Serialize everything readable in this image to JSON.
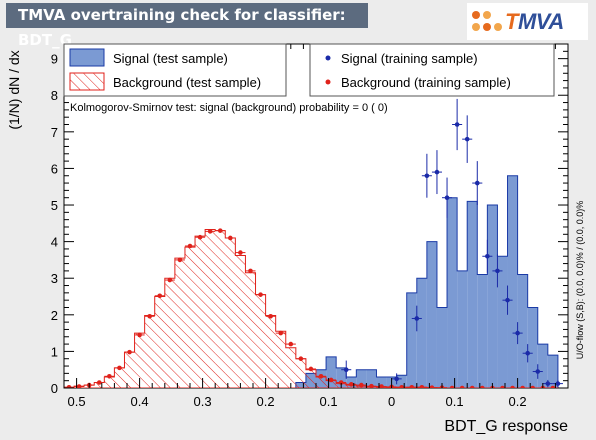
{
  "header": {
    "title": "TMVA overtraining check for classifier: BDT_G",
    "logo_t": "T",
    "logo_mva": "MVA"
  },
  "chart_data": {
    "type": "bar",
    "xlabel": "BDT_G response",
    "ylabel": "(1/N) dN / dx",
    "xlim": [
      -0.52,
      0.28
    ],
    "ylim": [
      0,
      9.4
    ],
    "xticks": [
      -0.5,
      -0.4,
      -0.3,
      -0.2,
      -0.1,
      0,
      0.1,
      0.2
    ],
    "xtick_labels": [
      "0.5",
      "0.4",
      "0.3",
      "0.2",
      "0.1",
      "0",
      "0.1",
      "0.2"
    ],
    "yticks": [
      0,
      1,
      2,
      3,
      4,
      5,
      6,
      7,
      8,
      9
    ],
    "ks_text": "Kolmogorov-Smirnov test: signal (background) probability =      0 (    0)",
    "side_text": "U/O-flow (S,B): (0.0, 0.0)% / (0.0, 0.0)%",
    "legend": {
      "signal_test": "Signal (test sample)",
      "background_test": "Background (test sample)",
      "signal_train": "Signal (training sample)",
      "background_train": "Background (training sample)"
    },
    "colors": {
      "signal_fill": "#7b9ad3",
      "signal_line": "#1a3aa6",
      "background_line": "#e0221b",
      "signal_point": "#1a2aa8",
      "background_point": "#e0221b"
    },
    "bin_edges_start": -0.52,
    "bin_width": 0.016,
    "signal_test": [
      0,
      0,
      0,
      0,
      0,
      0,
      0,
      0,
      0,
      0,
      0,
      0,
      0,
      0,
      0,
      0,
      0,
      0,
      0,
      0,
      0,
      0,
      0,
      0.15,
      0.4,
      0.5,
      0.85,
      0.55,
      0.3,
      0.5,
      0.5,
      0.3,
      0.3,
      0.35,
      2.6,
      3.0,
      4.0,
      2.2,
      5.2,
      3.2,
      5.1,
      3.1,
      5.0,
      3.6,
      5.8,
      3.1,
      2.2,
      1.2,
      0.9
    ],
    "background_test": [
      0.02,
      0.05,
      0.08,
      0.15,
      0.3,
      0.55,
      0.98,
      1.5,
      1.98,
      2.5,
      3.0,
      3.55,
      3.85,
      4.15,
      4.33,
      4.3,
      4.1,
      3.62,
      3.15,
      2.55,
      1.98,
      1.55,
      1.1,
      0.8,
      0.5,
      0.3,
      0.2,
      0.12,
      0.08,
      0.05,
      0.04,
      0.03,
      0.02,
      0.02,
      0.02,
      0.02,
      0.01,
      0,
      0,
      0,
      0,
      0,
      0,
      0,
      0,
      0,
      0,
      0,
      0
    ],
    "signal_train_points": [
      {
        "x": -0.072,
        "y": 0.5
      },
      {
        "x": 0.008,
        "y": 0.25
      },
      {
        "x": 0.04,
        "y": 1.9
      },
      {
        "x": 0.056,
        "y": 5.8
      },
      {
        "x": 0.072,
        "y": 5.9
      },
      {
        "x": 0.088,
        "y": 5.2
      },
      {
        "x": 0.104,
        "y": 7.2
      },
      {
        "x": 0.12,
        "y": 6.8
      },
      {
        "x": 0.136,
        "y": 5.6
      },
      {
        "x": 0.152,
        "y": 3.6
      },
      {
        "x": 0.168,
        "y": 3.2
      },
      {
        "x": 0.184,
        "y": 2.4
      },
      {
        "x": 0.2,
        "y": 1.5
      },
      {
        "x": 0.216,
        "y": 0.95
      },
      {
        "x": 0.232,
        "y": 0.45
      },
      {
        "x": 0.248,
        "y": 0.12
      },
      {
        "x": 0.264,
        "y": 0.12
      }
    ],
    "signal_train_errors": [
      0.25,
      0.15,
      0.35,
      0.6,
      0.6,
      0.55,
      0.7,
      0.65,
      0.6,
      0.45,
      0.45,
      0.4,
      0.3,
      0.25,
      0.2,
      0.1,
      0.1
    ],
    "background_train": [
      0.02,
      0.04,
      0.08,
      0.15,
      0.32,
      0.55,
      0.98,
      1.45,
      1.96,
      2.52,
      2.95,
      3.5,
      3.88,
      4.12,
      4.28,
      4.3,
      4.1,
      3.7,
      3.2,
      2.55,
      1.96,
      1.5,
      1.2,
      0.8,
      0.52,
      0.32,
      0.22,
      0.15,
      0.1,
      0.08,
      0.05,
      0.04,
      0.03,
      0.02,
      0.02,
      0.02,
      0.01,
      0.01,
      0,
      0,
      0,
      0,
      0,
      0,
      0,
      0,
      0,
      0,
      0
    ]
  }
}
